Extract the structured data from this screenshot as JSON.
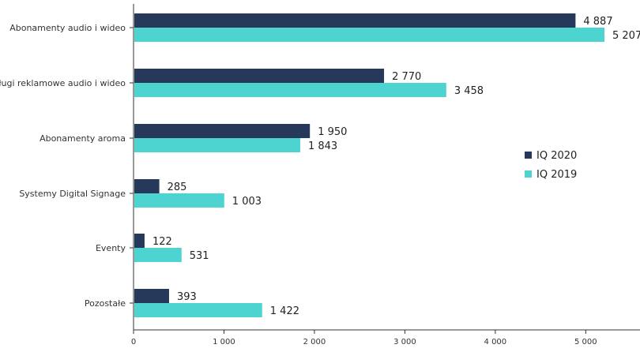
{
  "chart_data": {
    "type": "bar",
    "orientation": "horizontal",
    "title": "",
    "xlabel": "",
    "ylabel": "",
    "categories": [
      "Abonamenty audio i wideo",
      "Usługi reklamowe audio i wideo",
      "Abonamenty aroma",
      "Systemy Digital Signage",
      "Eventy",
      "Pozostałe"
    ],
    "series": [
      {
        "name": "IQ 2020",
        "color": "#26395a",
        "values": [
          4887,
          2770,
          1950,
          285,
          122,
          393
        ],
        "labels": [
          "4 887",
          "2 770",
          "1 950",
          "285",
          "122",
          "393"
        ]
      },
      {
        "name": "IQ 2019",
        "color": "#4dd3d0",
        "values": [
          5207,
          3458,
          1843,
          1003,
          531,
          1422
        ],
        "labels": [
          "5 207",
          "3 458",
          "1 843",
          "1 003",
          "531",
          "1 422"
        ]
      }
    ],
    "xlim": [
      0,
      5600
    ],
    "xticks": [
      {
        "value": 0,
        "label": "0"
      },
      {
        "value": 1000,
        "label": "1 000"
      },
      {
        "value": 2000,
        "label": "2 000"
      },
      {
        "value": 3000,
        "label": "3 000"
      },
      {
        "value": 4000,
        "label": "4 000"
      },
      {
        "value": 5000,
        "label": "5 000"
      }
    ],
    "grid": false,
    "legend_position": "right"
  }
}
